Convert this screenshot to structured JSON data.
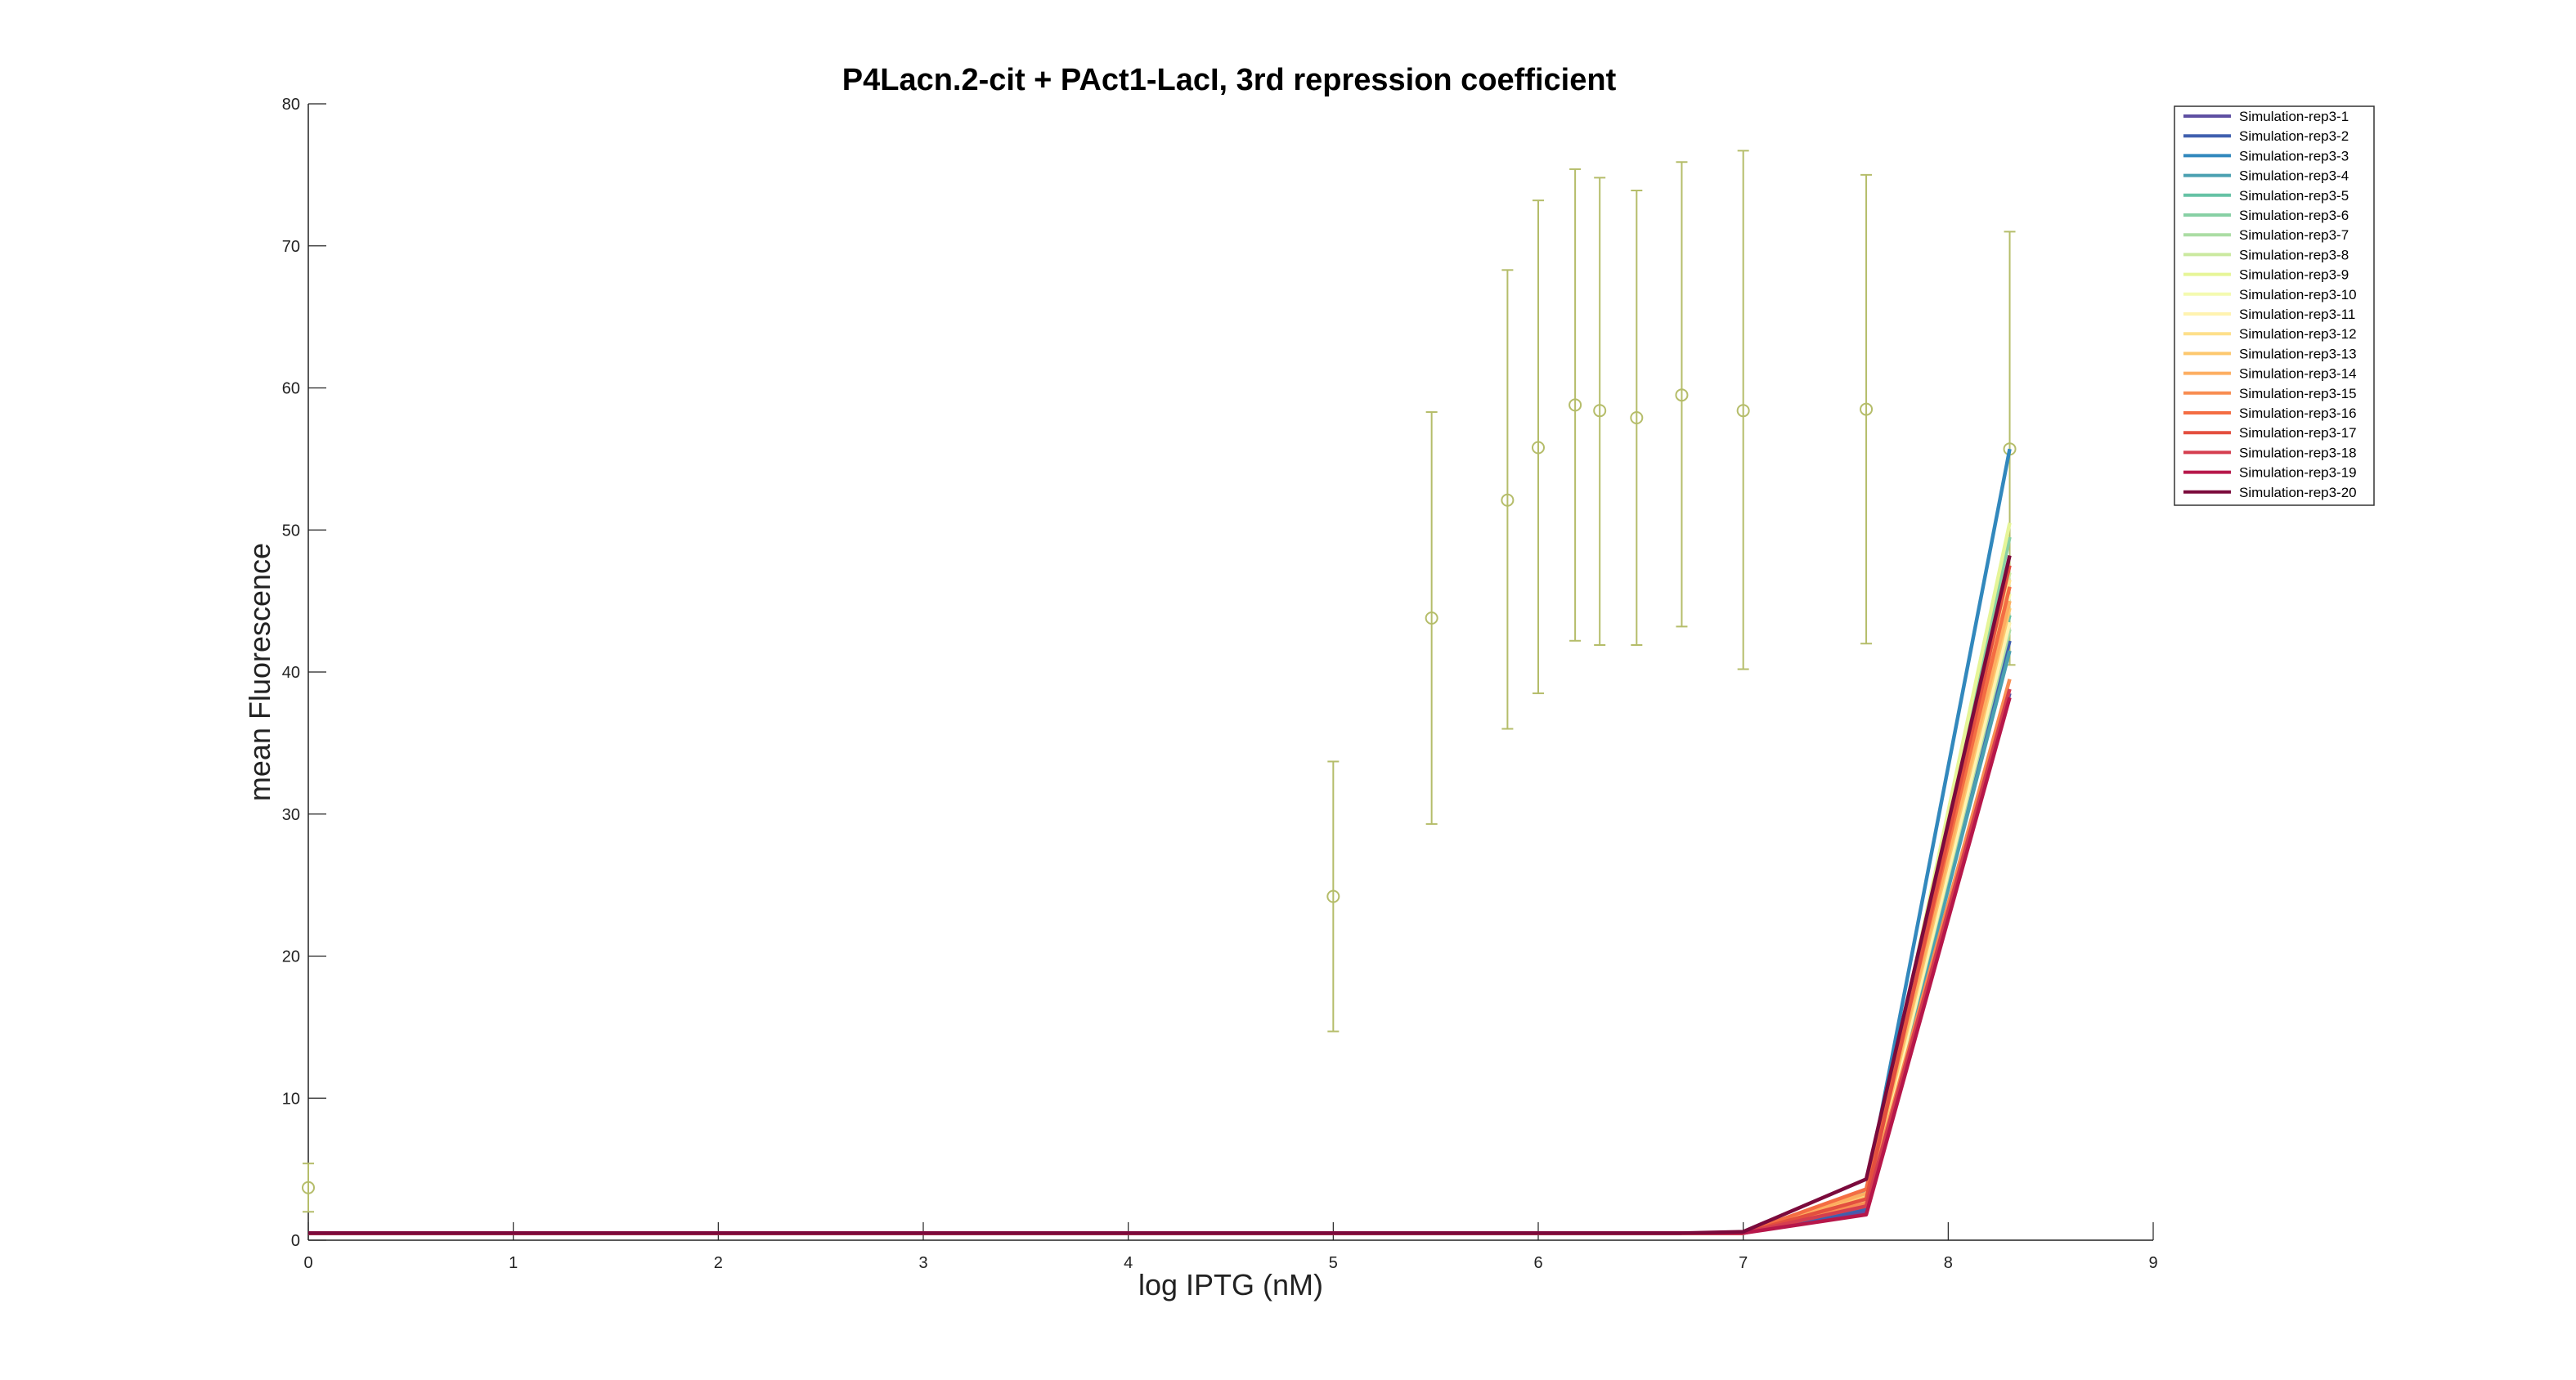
{
  "chart_data": {
    "type": "line",
    "title": "P4Lacn.2-cit + PAct1-LacI, 3rd repression coefficient",
    "xlabel": "log IPTG (nM)",
    "ylabel": "mean Fluorescence",
    "xlim": [
      0,
      9
    ],
    "ylim": [
      0,
      80
    ],
    "xticks": [
      "0",
      "1",
      "2",
      "3",
      "4",
      "5",
      "6",
      "7",
      "8",
      "9"
    ],
    "yticks": [
      "0",
      "10",
      "20",
      "30",
      "40",
      "50",
      "60",
      "70",
      "80"
    ],
    "grid": false,
    "legend_position": "top-right",
    "x": [
      0,
      5,
      5.48,
      5.85,
      6,
      6.18,
      6.3,
      6.48,
      6.7,
      7,
      7.6,
      8.3
    ],
    "experimental": {
      "color": "#b5bd6a",
      "marker": "circle",
      "mean": [
        3.7,
        24.2,
        43.8,
        52.1,
        55.8,
        58.8,
        58.4,
        57.9,
        59.5,
        58.4,
        58.5,
        55.7
      ],
      "error_low": [
        2.0,
        14.7,
        29.3,
        36.0,
        38.5,
        42.2,
        41.9,
        41.9,
        43.2,
        40.2,
        42.0,
        40.5
      ],
      "error_high": [
        5.4,
        33.7,
        58.3,
        68.3,
        73.2,
        75.4,
        74.8,
        73.9,
        75.9,
        76.7,
        75.0,
        71.0
      ]
    },
    "series": [
      {
        "name": "Simulation-rep3-1",
        "color": "#5e4fa2",
        "values": [
          0.5,
          0.5,
          0.5,
          0.5,
          0.5,
          0.5,
          0.5,
          0.5,
          0.5,
          0.5,
          2.0,
          38.5
        ]
      },
      {
        "name": "Simulation-rep3-2",
        "color": "#3f5fae",
        "values": [
          0.5,
          0.5,
          0.5,
          0.5,
          0.5,
          0.5,
          0.5,
          0.5,
          0.5,
          0.5,
          2.2,
          42.2
        ]
      },
      {
        "name": "Simulation-rep3-3",
        "color": "#3288bd",
        "values": [
          0.5,
          0.5,
          0.5,
          0.5,
          0.5,
          0.5,
          0.5,
          0.5,
          0.5,
          0.5,
          3.5,
          55.7
        ]
      },
      {
        "name": "Simulation-rep3-4",
        "color": "#4ba0b1",
        "values": [
          0.5,
          0.5,
          0.5,
          0.5,
          0.5,
          0.5,
          0.5,
          0.5,
          0.5,
          0.5,
          2.4,
          41.5
        ]
      },
      {
        "name": "Simulation-rep3-5",
        "color": "#66c2a5",
        "values": [
          0.5,
          0.5,
          0.5,
          0.5,
          0.5,
          0.5,
          0.5,
          0.5,
          0.5,
          0.5,
          2.8,
          44.0
        ]
      },
      {
        "name": "Simulation-rep3-6",
        "color": "#88d0a4",
        "values": [
          0.5,
          0.5,
          0.5,
          0.5,
          0.5,
          0.5,
          0.5,
          0.5,
          0.5,
          0.5,
          3.0,
          49.5
        ]
      },
      {
        "name": "Simulation-rep3-7",
        "color": "#abdda4",
        "values": [
          0.5,
          0.5,
          0.5,
          0.5,
          0.5,
          0.5,
          0.5,
          0.5,
          0.5,
          0.5,
          2.6,
          43.0
        ]
      },
      {
        "name": "Simulation-rep3-8",
        "color": "#cbe9a0",
        "values": [
          0.5,
          0.5,
          0.5,
          0.5,
          0.5,
          0.5,
          0.5,
          0.5,
          0.5,
          0.5,
          2.9,
          47.0
        ]
      },
      {
        "name": "Simulation-rep3-9",
        "color": "#e6f598",
        "values": [
          0.5,
          0.5,
          0.5,
          0.5,
          0.5,
          0.5,
          0.5,
          0.5,
          0.5,
          0.5,
          3.1,
          50.5
        ]
      },
      {
        "name": "Simulation-rep3-10",
        "color": "#f4fab0",
        "values": [
          0.5,
          0.5,
          0.5,
          0.5,
          0.5,
          0.5,
          0.5,
          0.5,
          0.5,
          0.5,
          2.7,
          45.5
        ]
      },
      {
        "name": "Simulation-rep3-11",
        "color": "#fff3b0",
        "values": [
          0.5,
          0.5,
          0.5,
          0.5,
          0.5,
          0.5,
          0.5,
          0.5,
          0.5,
          0.5,
          2.5,
          43.5
        ]
      },
      {
        "name": "Simulation-rep3-12",
        "color": "#fee08b",
        "values": [
          0.5,
          0.5,
          0.5,
          0.5,
          0.5,
          0.5,
          0.5,
          0.5,
          0.5,
          0.5,
          2.8,
          46.5
        ]
      },
      {
        "name": "Simulation-rep3-13",
        "color": "#fdc86f",
        "values": [
          0.5,
          0.5,
          0.5,
          0.5,
          0.5,
          0.5,
          0.5,
          0.5,
          0.5,
          0.5,
          3.0,
          44.5
        ]
      },
      {
        "name": "Simulation-rep3-14",
        "color": "#fdae61",
        "values": [
          0.5,
          0.5,
          0.5,
          0.5,
          0.5,
          0.5,
          0.5,
          0.5,
          0.5,
          0.5,
          3.3,
          45.0
        ]
      },
      {
        "name": "Simulation-rep3-15",
        "color": "#f88d52",
        "values": [
          0.5,
          0.5,
          0.5,
          0.5,
          0.5,
          0.5,
          0.5,
          0.5,
          0.5,
          0.5,
          2.6,
          39.5
        ]
      },
      {
        "name": "Simulation-rep3-16",
        "color": "#f46d43",
        "values": [
          0.5,
          0.5,
          0.5,
          0.5,
          0.5,
          0.5,
          0.5,
          0.5,
          0.5,
          0.5,
          3.6,
          46.0
        ]
      },
      {
        "name": "Simulation-rep3-17",
        "color": "#e34f3f",
        "values": [
          0.5,
          0.5,
          0.5,
          0.5,
          0.5,
          0.5,
          0.5,
          0.5,
          0.5,
          0.5,
          2.9,
          47.5
        ]
      },
      {
        "name": "Simulation-rep3-18",
        "color": "#d53e4f",
        "values": [
          0.5,
          0.5,
          0.5,
          0.5,
          0.5,
          0.5,
          0.5,
          0.5,
          0.5,
          0.5,
          2.4,
          38.8
        ]
      },
      {
        "name": "Simulation-rep3-19",
        "color": "#b7174a",
        "values": [
          0.5,
          0.5,
          0.5,
          0.5,
          0.5,
          0.5,
          0.5,
          0.5,
          0.5,
          0.5,
          1.8,
          38.2
        ]
      },
      {
        "name": "Simulation-rep3-20",
        "color": "#7b0a3c",
        "values": [
          0.5,
          0.5,
          0.5,
          0.5,
          0.5,
          0.5,
          0.5,
          0.5,
          0.5,
          0.6,
          4.3,
          48.2
        ]
      }
    ]
  }
}
